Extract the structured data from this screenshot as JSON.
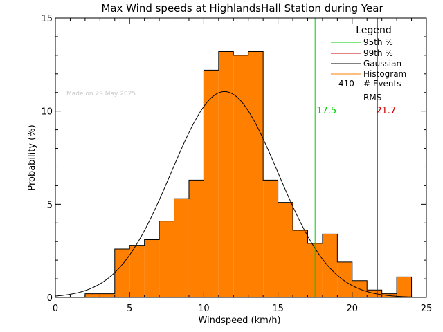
{
  "chart_data": {
    "type": "bar",
    "title": "Max Wind speeds at HighlandsHall Station during Year",
    "xlabel": "Windspeed (km/h)",
    "ylabel": "Probability (%)",
    "xlim": [
      0,
      25
    ],
    "ylim": [
      0,
      15
    ],
    "xticks": [
      "0",
      "5",
      "10",
      "15",
      "20",
      "25"
    ],
    "yticks": [
      "0",
      "5",
      "10",
      "15"
    ],
    "watermark": "Made on 29 May 2025",
    "histogram": {
      "name": "Histogram",
      "color": "#ff7f00",
      "bin_edges": [
        2,
        3,
        4,
        5,
        6,
        7,
        8,
        9,
        10,
        11,
        12,
        13,
        14,
        15,
        16,
        17,
        18,
        19,
        20,
        21,
        22,
        23,
        24
      ],
      "values": [
        0.2,
        0.2,
        2.6,
        2.8,
        3.1,
        4.1,
        5.3,
        6.3,
        12.2,
        13.2,
        13.0,
        13.2,
        6.3,
        5.1,
        3.6,
        2.9,
        3.4,
        1.9,
        0.9,
        0.4,
        0.2,
        1.1,
        0.0
      ]
    },
    "gaussian": {
      "name": "Gaussian",
      "color": "#000000",
      "mean": 11.4,
      "sigma": 3.6,
      "peak": 11.05
    },
    "percentile_95": {
      "name": "95th %",
      "value": 17.5,
      "label": "17.5",
      "color": "#00cc00"
    },
    "percentile_99": {
      "name": "99th %",
      "value": 21.7,
      "label": "21.7",
      "color": "#cc0000"
    },
    "legend": {
      "title": "Legend",
      "position": "top-right",
      "entries": [
        {
          "label": "95th %",
          "color": "#00cc00"
        },
        {
          "label": "99th %",
          "color": "#cc0000"
        },
        {
          "label": "Gaussian",
          "color": "#000000"
        },
        {
          "label": "Histogram",
          "color": "#ff7f00"
        }
      ],
      "events_count": "410",
      "events_label": "# Events",
      "rms_label": "RMS"
    }
  }
}
